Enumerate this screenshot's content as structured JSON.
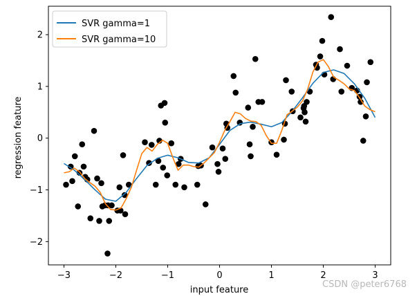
{
  "chart_data": {
    "type": "line",
    "xlabel": "input feature",
    "ylabel": "regression feature",
    "xlim": [
      -3.3,
      3.3
    ],
    "ylim": [
      -2.45,
      2.55
    ],
    "xticks": [
      -3,
      -2,
      -1,
      0,
      1,
      2,
      3
    ],
    "yticks": [
      -2,
      -1,
      0,
      1,
      2
    ],
    "xtick_labels": [
      "−3",
      "−2",
      "−1",
      "0",
      "1",
      "2",
      "3"
    ],
    "ytick_labels": [
      "−2",
      "−1",
      "0",
      "1",
      "2"
    ],
    "legend_position": "top-left",
    "grid": false,
    "series": [
      {
        "name": "SVR gamma=1",
        "color": "#1f77b4",
        "kind": "line",
        "x": [
          -3.0,
          -2.8,
          -2.6,
          -2.4,
          -2.2,
          -2.0,
          -1.8,
          -1.6,
          -1.4,
          -1.2,
          -1.0,
          -0.8,
          -0.6,
          -0.4,
          -0.2,
          0.0,
          0.2,
          0.4,
          0.6,
          0.8,
          1.0,
          1.2,
          1.4,
          1.6,
          1.8,
          2.0,
          2.2,
          2.4,
          2.6,
          2.8,
          3.0
        ],
        "y": [
          -0.49,
          -0.62,
          -0.8,
          -1.0,
          -1.18,
          -1.22,
          -1.05,
          -0.78,
          -0.53,
          -0.39,
          -0.33,
          -0.38,
          -0.47,
          -0.48,
          -0.38,
          -0.12,
          0.15,
          0.28,
          0.31,
          0.27,
          0.22,
          0.3,
          0.52,
          0.78,
          1.06,
          1.27,
          1.32,
          1.25,
          1.05,
          0.77,
          0.4
        ]
      },
      {
        "name": "SVR gamma=10",
        "color": "#ff7f0e",
        "kind": "line",
        "x": [
          -3.0,
          -2.9,
          -2.8,
          -2.7,
          -2.6,
          -2.5,
          -2.4,
          -2.3,
          -2.2,
          -2.1,
          -2.0,
          -1.9,
          -1.8,
          -1.7,
          -1.6,
          -1.5,
          -1.4,
          -1.3,
          -1.2,
          -1.1,
          -1.0,
          -0.9,
          -0.8,
          -0.7,
          -0.6,
          -0.5,
          -0.4,
          -0.3,
          -0.2,
          -0.1,
          0.0,
          0.1,
          0.2,
          0.3,
          0.4,
          0.5,
          0.6,
          0.7,
          0.8,
          0.9,
          1.0,
          1.1,
          1.2,
          1.3,
          1.4,
          1.5,
          1.6,
          1.7,
          1.8,
          1.9,
          2.0,
          2.1,
          2.2,
          2.3,
          2.4,
          2.5,
          2.6,
          2.7,
          2.8,
          2.9,
          3.0
        ],
        "y": [
          -0.67,
          -0.65,
          -0.58,
          -0.65,
          -0.78,
          -0.86,
          -0.93,
          -1.05,
          -1.27,
          -1.38,
          -1.39,
          -1.35,
          -1.17,
          -0.95,
          -0.62,
          -0.3,
          -0.18,
          -0.25,
          -0.12,
          -0.04,
          -0.1,
          -0.38,
          -0.62,
          -0.52,
          -0.52,
          -0.55,
          -0.56,
          -0.48,
          -0.38,
          -0.28,
          -0.08,
          0.15,
          0.32,
          0.5,
          0.47,
          0.38,
          0.33,
          0.32,
          0.25,
          0.05,
          -0.1,
          -0.1,
          0.15,
          0.45,
          0.52,
          0.6,
          0.72,
          0.95,
          1.28,
          1.47,
          1.52,
          1.38,
          1.18,
          1.12,
          1.05,
          0.95,
          0.92,
          0.78,
          0.62,
          0.55,
          0.51
        ]
      },
      {
        "name": "",
        "color": "#000000",
        "kind": "scatter",
        "x": [
          -2.96,
          -2.87,
          -2.84,
          -2.79,
          -2.73,
          -2.7,
          -2.65,
          -2.62,
          -2.59,
          -2.55,
          -2.49,
          -2.42,
          -2.36,
          -2.32,
          -2.28,
          -2.26,
          -2.21,
          -2.16,
          -2.15,
          -2.13,
          -2.08,
          -1.97,
          -1.93,
          -1.91,
          -1.86,
          -1.83,
          -1.82,
          -1.75,
          -1.44,
          -1.36,
          -1.31,
          -1.23,
          -1.18,
          -1.16,
          -1.13,
          -1.09,
          -1.06,
          -1.05,
          -1.01,
          -0.93,
          -0.85,
          -0.79,
          -0.75,
          -0.68,
          -0.43,
          -0.41,
          -0.36,
          -0.27,
          -0.14,
          -0.04,
          -0.02,
          0.06,
          0.11,
          0.13,
          0.15,
          0.27,
          0.31,
          0.39,
          0.55,
          0.58,
          0.6,
          0.64,
          0.69,
          0.75,
          0.82,
          1.0,
          1.1,
          1.24,
          1.26,
          1.28,
          1.39,
          1.41,
          1.56,
          1.62,
          1.63,
          1.64,
          1.66,
          1.68,
          1.74,
          1.86,
          1.88,
          1.94,
          1.98,
          2.02,
          2.15,
          2.19,
          2.32,
          2.35,
          2.46,
          2.55,
          2.65,
          2.7,
          2.72,
          2.77,
          2.82,
          2.84,
          2.91
        ],
        "y": [
          -0.9,
          -0.55,
          -0.83,
          -0.35,
          -1.32,
          -0.67,
          -0.12,
          -0.55,
          -0.75,
          -0.8,
          -1.55,
          0.14,
          -0.78,
          -1.6,
          -0.87,
          -1.32,
          -1.3,
          -2.23,
          -1.3,
          -1.6,
          -1.3,
          -1.4,
          -0.95,
          -1.4,
          -0.33,
          -1.1,
          -1.47,
          -0.9,
          -0.08,
          -0.48,
          -0.13,
          -0.9,
          -0.44,
          -0.05,
          0.63,
          -0.57,
          0.68,
          0.3,
          -0.72,
          -0.1,
          -0.9,
          -0.5,
          -0.4,
          -0.95,
          -0.9,
          -0.54,
          -0.53,
          -1.28,
          -0.18,
          -0.5,
          -0.65,
          -0.2,
          -0.4,
          0.28,
          0.2,
          1.2,
          0.88,
          0.3,
          0.59,
          -0.12,
          -0.35,
          0.22,
          1.53,
          0.7,
          0.7,
          -0.08,
          -0.32,
          -0.03,
          0.28,
          1.12,
          0.9,
          0.52,
          0.4,
          0.58,
          0.62,
          0.5,
          0.32,
          0.7,
          0.9,
          1.42,
          1.36,
          1.58,
          1.88,
          1.23,
          2.34,
          1.14,
          1.72,
          0.9,
          1.4,
          0.97,
          0.92,
          0.8,
          0.7,
          -0.05,
          0.42,
          1.08,
          1.47
        ]
      }
    ]
  },
  "watermark": "CSDN @peter6768"
}
